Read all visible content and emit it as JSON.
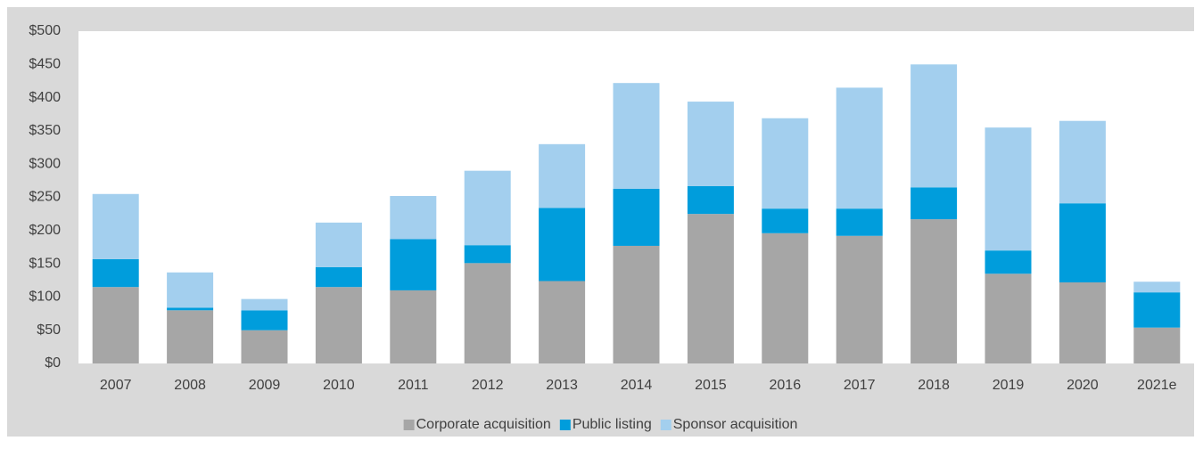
{
  "chart_data": {
    "type": "stacked_bar",
    "categories": [
      "2007",
      "2008",
      "2009",
      "2010",
      "2011",
      "2012",
      "2013",
      "2014",
      "2015",
      "2016",
      "2017",
      "2018",
      "2019",
      "2020",
      "2021e"
    ],
    "series": [
      {
        "name": "Corporate acquisition",
        "color": "#a6a6a6",
        "values": [
          115,
          80,
          50,
          115,
          110,
          151,
          124,
          177,
          225,
          196,
          192,
          217,
          135,
          122,
          54
        ]
      },
      {
        "name": "Public listing",
        "color": "#009ddc",
        "values": [
          42,
          4,
          30,
          30,
          77,
          27,
          110,
          86,
          42,
          37,
          41,
          48,
          35,
          119,
          53
        ]
      },
      {
        "name": "Sponsor acquisition",
        "color": "#a3cfee",
        "values": [
          98,
          53,
          17,
          67,
          65,
          112,
          96,
          159,
          127,
          136,
          182,
          185,
          185,
          124,
          16
        ]
      }
    ],
    "ylim": [
      0,
      500
    ],
    "yticks": [
      {
        "value": 0,
        "label": "$0"
      },
      {
        "value": 50,
        "label": "$50"
      },
      {
        "value": 100,
        "label": "$100"
      },
      {
        "value": 150,
        "label": "$150"
      },
      {
        "value": 200,
        "label": "$200"
      },
      {
        "value": 250,
        "label": "$250"
      },
      {
        "value": 300,
        "label": "$300"
      },
      {
        "value": 350,
        "label": "$350"
      },
      {
        "value": 400,
        "label": "$400"
      },
      {
        "value": 450,
        "label": "$450"
      },
      {
        "value": 500,
        "label": "$500"
      }
    ],
    "legend": "bottom"
  }
}
